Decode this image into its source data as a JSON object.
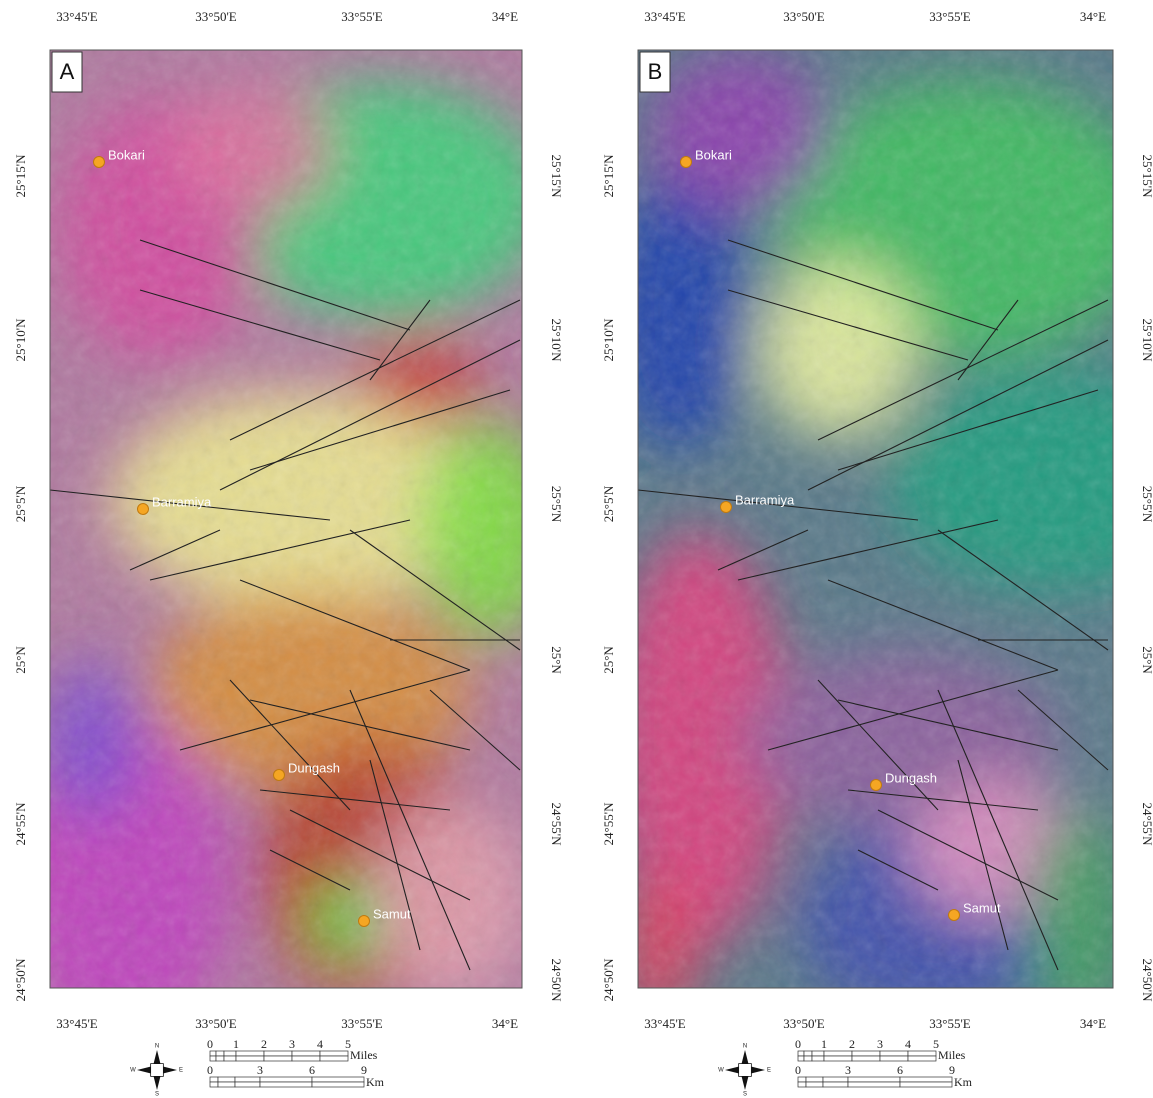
{
  "panels": [
    {
      "label": "A",
      "top_ticks": [
        "33°45'E",
        "33°50'E",
        "33°55'E",
        "34°E"
      ],
      "bottom_ticks": [
        "33°45'E",
        "33°50'E",
        "33°55'E",
        "34°E"
      ],
      "left_ticks": [
        "25°15'N",
        "25°10'N",
        "25°5'N",
        "25°N",
        "24°55'N",
        "24°50'N"
      ],
      "right_ticks": [
        "25°15'N",
        "25°10'N",
        "25°5'N",
        "25°N",
        "24°55'N",
        "24°50'N"
      ],
      "towns": [
        "Bokari",
        "Barramiya",
        "Dungash",
        "Samut"
      ],
      "scale": {
        "miles_ticks": [
          "0",
          "1",
          "2",
          "3",
          "4",
          "5"
        ],
        "miles_unit": "Miles",
        "km_ticks": [
          "0",
          "3",
          "6",
          "9"
        ],
        "km_unit": "Km"
      },
      "compass": {
        "n": "N",
        "e": "E",
        "s": "S",
        "w": "W"
      }
    },
    {
      "label": "B",
      "top_ticks": [
        "33°45'E",
        "33°50'E",
        "33°55'E",
        "34°E"
      ],
      "bottom_ticks": [
        "33°45'E",
        "33°50'E",
        "33°55'E",
        "34°E"
      ],
      "left_ticks": [
        "25°15'N",
        "25°10'N",
        "25°5'N",
        "25°N",
        "24°55'N",
        "24°50'N"
      ],
      "right_ticks": [
        "25°15'N",
        "25°10'N",
        "25°5'N",
        "25°N",
        "24°55'N",
        "24°50'N"
      ],
      "towns": [
        "Bokari",
        "Barramiya",
        "Dungash",
        "Samut"
      ],
      "scale": {
        "miles_ticks": [
          "0",
          "1",
          "2",
          "3",
          "4",
          "5"
        ],
        "miles_unit": "Miles",
        "km_ticks": [
          "0",
          "3",
          "6",
          "9"
        ],
        "km_unit": "Km"
      },
      "compass": {
        "n": "N",
        "e": "E",
        "s": "S",
        "w": "W"
      }
    }
  ]
}
